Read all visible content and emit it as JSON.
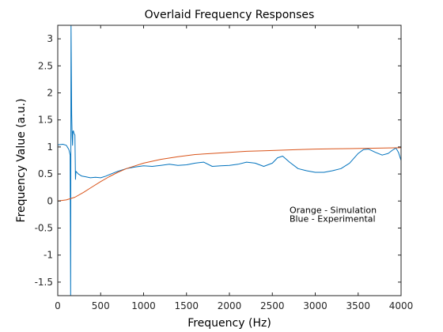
{
  "chart_data": {
    "type": "line",
    "title": "Overlaid Frequency Responses",
    "xlabel": "Frequency (Hz)",
    "ylabel": "Frequency Value (a.u.)",
    "xlim": [
      0,
      4000
    ],
    "ylim": [
      -1.75,
      3.25
    ],
    "x_ticks": [
      0,
      500,
      1000,
      1500,
      2000,
      2500,
      3000,
      3500,
      4000
    ],
    "y_ticks": [
      -1.5,
      -1,
      -0.5,
      0,
      0.5,
      1,
      1.5,
      2,
      2.5,
      3
    ],
    "grid": false,
    "annotations": [
      {
        "text": "Orange - Simulation",
        "x": 2700,
        "y": -0.22
      },
      {
        "text": "Blue - Experimental",
        "x": 2700,
        "y": -0.38
      }
    ],
    "series": [
      {
        "color": "#0072BD",
        "points": [
          [
            0,
            1.04
          ],
          [
            60,
            1.05
          ],
          [
            100,
            1.03
          ],
          [
            130,
            0.95
          ],
          [
            145,
            0.85
          ],
          [
            150,
            -1.75
          ],
          [
            155,
            3.25
          ],
          [
            162,
            1.6
          ],
          [
            168,
            1.2
          ],
          [
            172,
            1.03
          ],
          [
            176,
            1.28
          ],
          [
            182,
            1.3
          ],
          [
            190,
            1.25
          ],
          [
            200,
            1.22
          ],
          [
            206,
            0.4
          ],
          [
            212,
            0.55
          ],
          [
            240,
            0.5
          ],
          [
            280,
            0.46
          ],
          [
            320,
            0.45
          ],
          [
            380,
            0.43
          ],
          [
            440,
            0.44
          ],
          [
            500,
            0.43
          ],
          [
            560,
            0.46
          ],
          [
            620,
            0.5
          ],
          [
            700,
            0.55
          ],
          [
            800,
            0.6
          ],
          [
            900,
            0.63
          ],
          [
            1000,
            0.65
          ],
          [
            1100,
            0.64
          ],
          [
            1200,
            0.66
          ],
          [
            1300,
            0.68
          ],
          [
            1400,
            0.66
          ],
          [
            1500,
            0.67
          ],
          [
            1600,
            0.7
          ],
          [
            1700,
            0.72
          ],
          [
            1800,
            0.64
          ],
          [
            1900,
            0.65
          ],
          [
            2000,
            0.66
          ],
          [
            2100,
            0.68
          ],
          [
            2200,
            0.72
          ],
          [
            2300,
            0.7
          ],
          [
            2400,
            0.64
          ],
          [
            2500,
            0.7
          ],
          [
            2560,
            0.8
          ],
          [
            2620,
            0.83
          ],
          [
            2700,
            0.72
          ],
          [
            2800,
            0.6
          ],
          [
            2900,
            0.56
          ],
          [
            3000,
            0.53
          ],
          [
            3100,
            0.53
          ],
          [
            3200,
            0.56
          ],
          [
            3300,
            0.6
          ],
          [
            3400,
            0.7
          ],
          [
            3500,
            0.88
          ],
          [
            3560,
            0.95
          ],
          [
            3620,
            0.96
          ],
          [
            3700,
            0.9
          ],
          [
            3780,
            0.85
          ],
          [
            3850,
            0.88
          ],
          [
            3900,
            0.94
          ],
          [
            3940,
            0.98
          ],
          [
            3970,
            0.9
          ],
          [
            4000,
            0.75
          ]
        ]
      },
      {
        "color": "#D95319",
        "points": [
          [
            0,
            0.0
          ],
          [
            100,
            0.02
          ],
          [
            200,
            0.07
          ],
          [
            300,
            0.16
          ],
          [
            400,
            0.26
          ],
          [
            500,
            0.36
          ],
          [
            600,
            0.45
          ],
          [
            700,
            0.53
          ],
          [
            800,
            0.6
          ],
          [
            900,
            0.65
          ],
          [
            1000,
            0.7
          ],
          [
            1200,
            0.77
          ],
          [
            1400,
            0.82
          ],
          [
            1600,
            0.86
          ],
          [
            1800,
            0.88
          ],
          [
            2000,
            0.9
          ],
          [
            2200,
            0.92
          ],
          [
            2400,
            0.93
          ],
          [
            2600,
            0.94
          ],
          [
            2800,
            0.95
          ],
          [
            3000,
            0.96
          ],
          [
            3200,
            0.965
          ],
          [
            3400,
            0.97
          ],
          [
            3600,
            0.975
          ],
          [
            3800,
            0.98
          ],
          [
            4000,
            0.985
          ]
        ]
      }
    ]
  }
}
